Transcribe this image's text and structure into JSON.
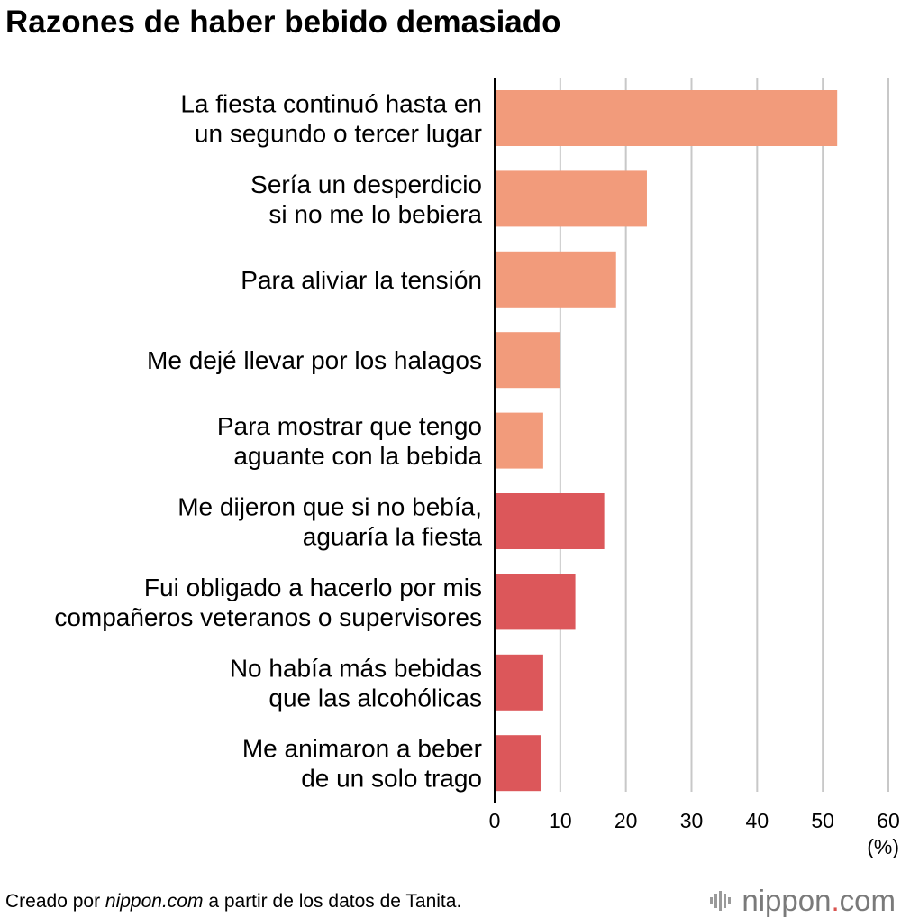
{
  "chart_data": {
    "type": "bar",
    "orientation": "horizontal",
    "title": "Razones de haber bebido demasiado",
    "categories": [
      [
        "La fiesta continuó hasta en",
        "un segundo o tercer lugar"
      ],
      [
        "Sería un desperdicio",
        "si no me lo bebiera"
      ],
      [
        "Para aliviar la tensión"
      ],
      [
        "Me dejé llevar por los halagos"
      ],
      [
        "Para mostrar que tengo",
        "aguante con la bebida"
      ],
      [
        "Me dijeron que si no bebía,",
        "aguaría la fiesta"
      ],
      [
        "Fui obligado a hacerlo por mis",
        "compañeros veteranos o supervisores"
      ],
      [
        "No había más bebidas",
        "que las alcohólicas"
      ],
      [
        "Me animaron a beber",
        "de un solo trago"
      ]
    ],
    "values": [
      52.2,
      23.2,
      18.5,
      10.0,
      7.4,
      16.7,
      12.3,
      7.4,
      7.0
    ],
    "bar_colors": [
      "#f29b7b",
      "#f29b7b",
      "#f29b7b",
      "#f29b7b",
      "#f29b7b",
      "#dc575a",
      "#dc575a",
      "#dc575a",
      "#dc575a"
    ],
    "xlim": [
      0,
      60
    ],
    "xticks": [
      0,
      10,
      20,
      30,
      40,
      50,
      60
    ],
    "xlabel": "(%)",
    "grid": true,
    "grid_color": "#c8c8c8"
  },
  "footer": {
    "prefix": "Creado por ",
    "source": "nippon.com",
    "suffix": " a partir de los datos de Tanita."
  },
  "brand": {
    "name": "nippon",
    "dot": ".",
    "tld": "com",
    "icon": "nippon-logo-icon"
  }
}
